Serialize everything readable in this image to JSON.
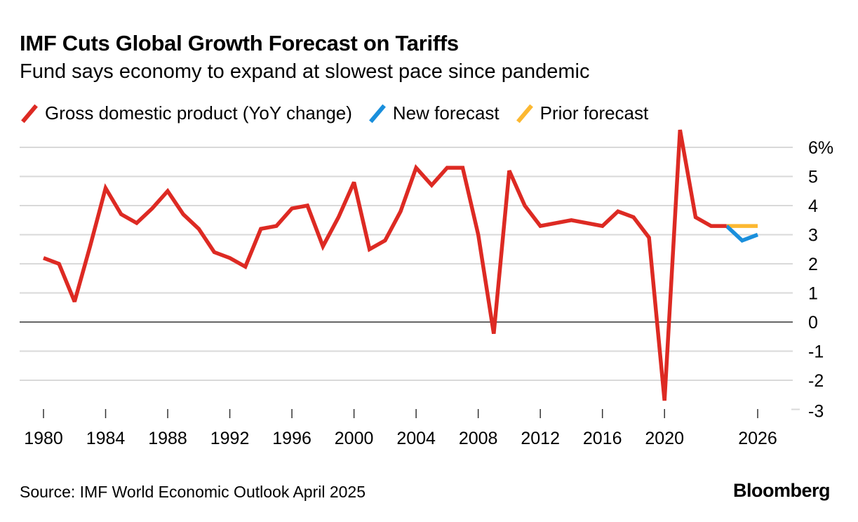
{
  "chart_data": {
    "type": "line",
    "title": "IMF Cuts Global Growth Forecast on Tariffs",
    "subtitle": "Fund says economy to expand at slowest pace since pandemic",
    "source": "Source: IMF World Economic Outlook April 2025",
    "brand": "Bloomberg",
    "xlim": [
      1980,
      2026
    ],
    "ylim": [
      -3,
      6
    ],
    "grid": true,
    "legend_placement": "top-left",
    "x_ticks": [
      "1980",
      "1984",
      "1988",
      "1992",
      "1996",
      "2000",
      "2004",
      "2008",
      "2012",
      "2016",
      "2020",
      "2026"
    ],
    "y_ticks": [
      "6%",
      "5",
      "4",
      "3",
      "2",
      "1",
      "0",
      "-1",
      "-2",
      "-3"
    ],
    "y_tick_values": [
      6,
      5,
      4,
      3,
      2,
      1,
      0,
      -1,
      -2,
      -3
    ],
    "series": [
      {
        "name": "Gross domestic product (YoY change)",
        "color": "#dd2a23",
        "x": [
          1980,
          1981,
          1982,
          1983,
          1984,
          1985,
          1986,
          1987,
          1988,
          1989,
          1990,
          1991,
          1992,
          1993,
          1994,
          1995,
          1996,
          1997,
          1998,
          1999,
          2000,
          2001,
          2002,
          2003,
          2004,
          2005,
          2006,
          2007,
          2008,
          2009,
          2010,
          2011,
          2012,
          2013,
          2014,
          2015,
          2016,
          2017,
          2018,
          2019,
          2020,
          2021,
          2022,
          2023,
          2024
        ],
        "values": [
          2.2,
          2.0,
          0.7,
          2.6,
          4.6,
          3.7,
          3.4,
          3.9,
          4.5,
          3.7,
          3.2,
          2.4,
          2.2,
          1.9,
          3.2,
          3.3,
          3.9,
          4.0,
          2.6,
          3.6,
          4.8,
          2.5,
          2.8,
          3.8,
          5.3,
          4.7,
          5.3,
          5.3,
          3.0,
          -0.4,
          5.2,
          4.0,
          3.3,
          3.4,
          3.5,
          3.4,
          3.3,
          3.8,
          3.6,
          2.9,
          -2.7,
          6.6,
          3.6,
          3.3,
          3.3
        ]
      },
      {
        "name": "New forecast",
        "color": "#1a8fdc",
        "x": [
          2024,
          2025,
          2026
        ],
        "values": [
          3.3,
          2.8,
          3.0
        ]
      },
      {
        "name": "Prior forecast",
        "color": "#fcb831",
        "x": [
          2024,
          2025,
          2026
        ],
        "values": [
          3.3,
          3.3,
          3.3
        ]
      }
    ]
  }
}
